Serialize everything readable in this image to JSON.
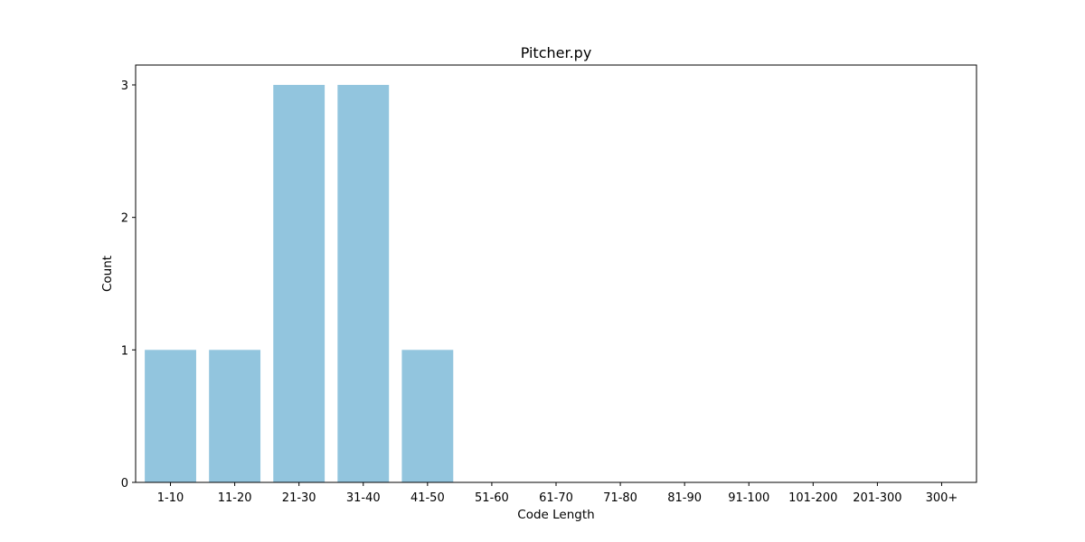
{
  "chart_data": {
    "type": "bar",
    "title": "Pitcher.py",
    "xlabel": "Code Length",
    "ylabel": "Count",
    "categories": [
      "1-10",
      "11-20",
      "21-30",
      "31-40",
      "41-50",
      "51-60",
      "61-70",
      "71-80",
      "81-90",
      "91-100",
      "101-200",
      "201-300",
      "300+"
    ],
    "values": [
      1,
      1,
      3,
      3,
      1,
      0,
      0,
      0,
      0,
      0,
      0,
      0,
      0
    ],
    "yticks": [
      0,
      1,
      2,
      3
    ],
    "ylim": [
      0,
      3.15
    ],
    "grid": false,
    "bar_color": "#92c5de"
  }
}
